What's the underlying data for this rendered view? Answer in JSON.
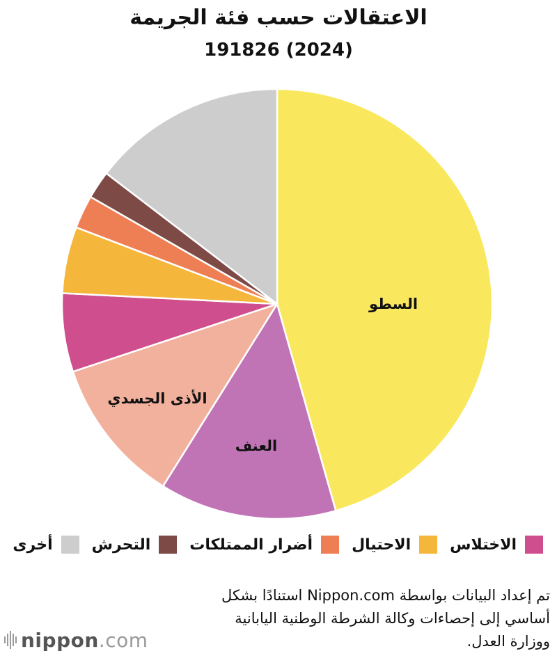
{
  "title": "الاعتقالات حسب فئة الجريمة",
  "subtitle": "191826 (2024)",
  "chart_data": {
    "type": "pie",
    "total": 191826,
    "start_angle_deg": 0,
    "direction": "clockwise",
    "slices": [
      {
        "name": "السطو",
        "value": 45.6,
        "color": "#F9E85E",
        "label": "السطو"
      },
      {
        "name": "العنف",
        "value": 13.3,
        "color": "#C074B6",
        "label": "العنف"
      },
      {
        "name": "الأذى الجسدي",
        "value": 11.0,
        "color": "#F2B19C",
        "label": "الأذى الجسدي"
      },
      {
        "name": "الاختلاس",
        "value": 5.9,
        "color": "#CF4F8E",
        "label": ""
      },
      {
        "name": "الاحتيال",
        "value": 5.0,
        "color": "#F4B73C",
        "label": ""
      },
      {
        "name": "أضرار الممتلكات",
        "value": 2.5,
        "color": "#EE7F55",
        "label": ""
      },
      {
        "name": "التحرش",
        "value": 2.1,
        "color": "#7E4A46",
        "label": ""
      },
      {
        "name": "أخرى",
        "value": 14.6,
        "color": "#CDCDCD",
        "label": ""
      }
    ]
  },
  "legend": [
    {
      "label": "الاختلاس",
      "color": "#CF4F8E"
    },
    {
      "label": "الاحتيال",
      "color": "#F4B73C"
    },
    {
      "label": "أضرار الممتلكات",
      "color": "#EE7F55"
    },
    {
      "label": "التحرش",
      "color": "#7E4A46"
    },
    {
      "label": "أخرى",
      "color": "#CDCDCD"
    }
  ],
  "source": {
    "line1": "تم إعداد البيانات بواسطة Nippon.com استنادًا بشكل",
    "line2": "أساسي إلى إحصاءات وكالة الشرطة الوطنية اليابانية",
    "line3": "ووزارة العدل."
  },
  "logo": {
    "text_bold": "nippon",
    "text_light": ".com"
  }
}
